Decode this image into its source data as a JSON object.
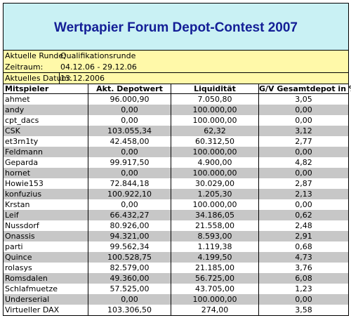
{
  "title": "Wertpapier Forum Depot-Contest 2007",
  "colors": {
    "title_bg": "#c9f1f4",
    "title_text": "#131e96",
    "info_bg": "#fff9a9",
    "stripe": "#c7c7c7"
  },
  "info": [
    {
      "label": "Aktuelle Runde:",
      "value": "Qualifikationsrunde"
    },
    {
      "label": "Zeitraum:",
      "value": "04.12.06 - 29.12.06"
    },
    {
      "label": "Aktuelles Datum:",
      "value": "13.12.2006"
    }
  ],
  "table": {
    "headers": [
      "Mitspieler",
      "Akt. Depotwert",
      "Liquidität",
      "G/V Gesamtdepot in %"
    ],
    "rows": [
      [
        "ahmet",
        "96.000,90",
        "7.050,80",
        "3,05"
      ],
      [
        "andy",
        "0,00",
        "100.000,00",
        "0,00"
      ],
      [
        "cpt_dacs",
        "0,00",
        "100.000,00",
        "0,00"
      ],
      [
        "CSK",
        "103.055,34",
        "62,32",
        "3,12"
      ],
      [
        "et3rn1ty",
        "42.458,00",
        "60.312,50",
        "2,77"
      ],
      [
        "Feldmann",
        "0,00",
        "100.000,00",
        "0,00"
      ],
      [
        "Geparda",
        "99.917,50",
        "4.900,00",
        "4,82"
      ],
      [
        "hornet",
        "0,00",
        "100.000,00",
        "0,00"
      ],
      [
        "Howie153",
        "72.844,18",
        "30.029,00",
        "2,87"
      ],
      [
        "konfuzius",
        "100.922,10",
        "1.205,30",
        "2,13"
      ],
      [
        "Krstan",
        "0,00",
        "100.000,00",
        "0,00"
      ],
      [
        "Leif",
        "66.432,27",
        "34.186,05",
        "0,62"
      ],
      [
        "Nussdorf",
        "80.926,00",
        "21.558,00",
        "2,48"
      ],
      [
        "Onassis",
        "94.321,00",
        "8.593,00",
        "2,91"
      ],
      [
        "parti",
        "99.562,34",
        "1.119,38",
        "0,68"
      ],
      [
        "Quince",
        "100.528,75",
        "4.199,50",
        "4,73"
      ],
      [
        "rolasys",
        "82.579,00",
        "21.185,00",
        "3,76"
      ],
      [
        "Romsdalen",
        "49.360,00",
        "56.725,00",
        "6,08"
      ],
      [
        "Schlafmuetze",
        "57.525,00",
        "43.705,00",
        "1,23"
      ],
      [
        "Underserial",
        "0,00",
        "100.000,00",
        "0,00"
      ],
      [
        "Virtueller DAX",
        "103.306,50",
        "274,00",
        "3,58"
      ]
    ]
  }
}
